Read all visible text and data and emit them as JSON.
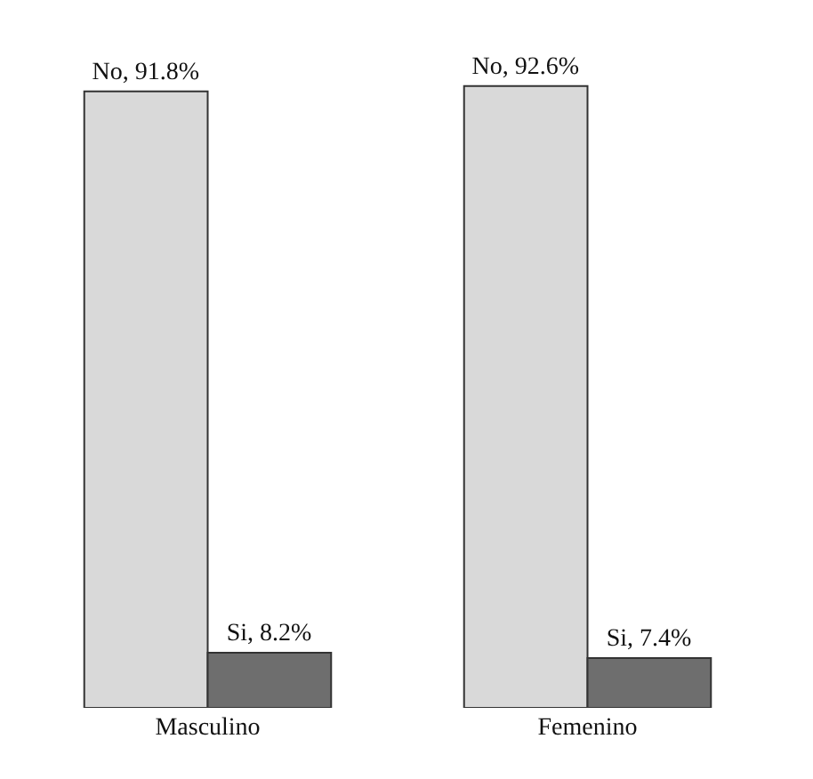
{
  "chart_data": {
    "type": "bar",
    "categories": [
      "Masculino",
      "Femenino"
    ],
    "series": [
      {
        "color": "#d9d9d9",
        "values": [
          91.8,
          92.6
        ],
        "value_labels": [
          "No, 91.8%",
          "No, 92.6%"
        ]
      },
      {
        "color": "#6e6e6e",
        "values": [
          8.2,
          7.4
        ],
        "value_labels": [
          "Si, 8.2%",
          "Si, 7.4%"
        ]
      }
    ]
  }
}
